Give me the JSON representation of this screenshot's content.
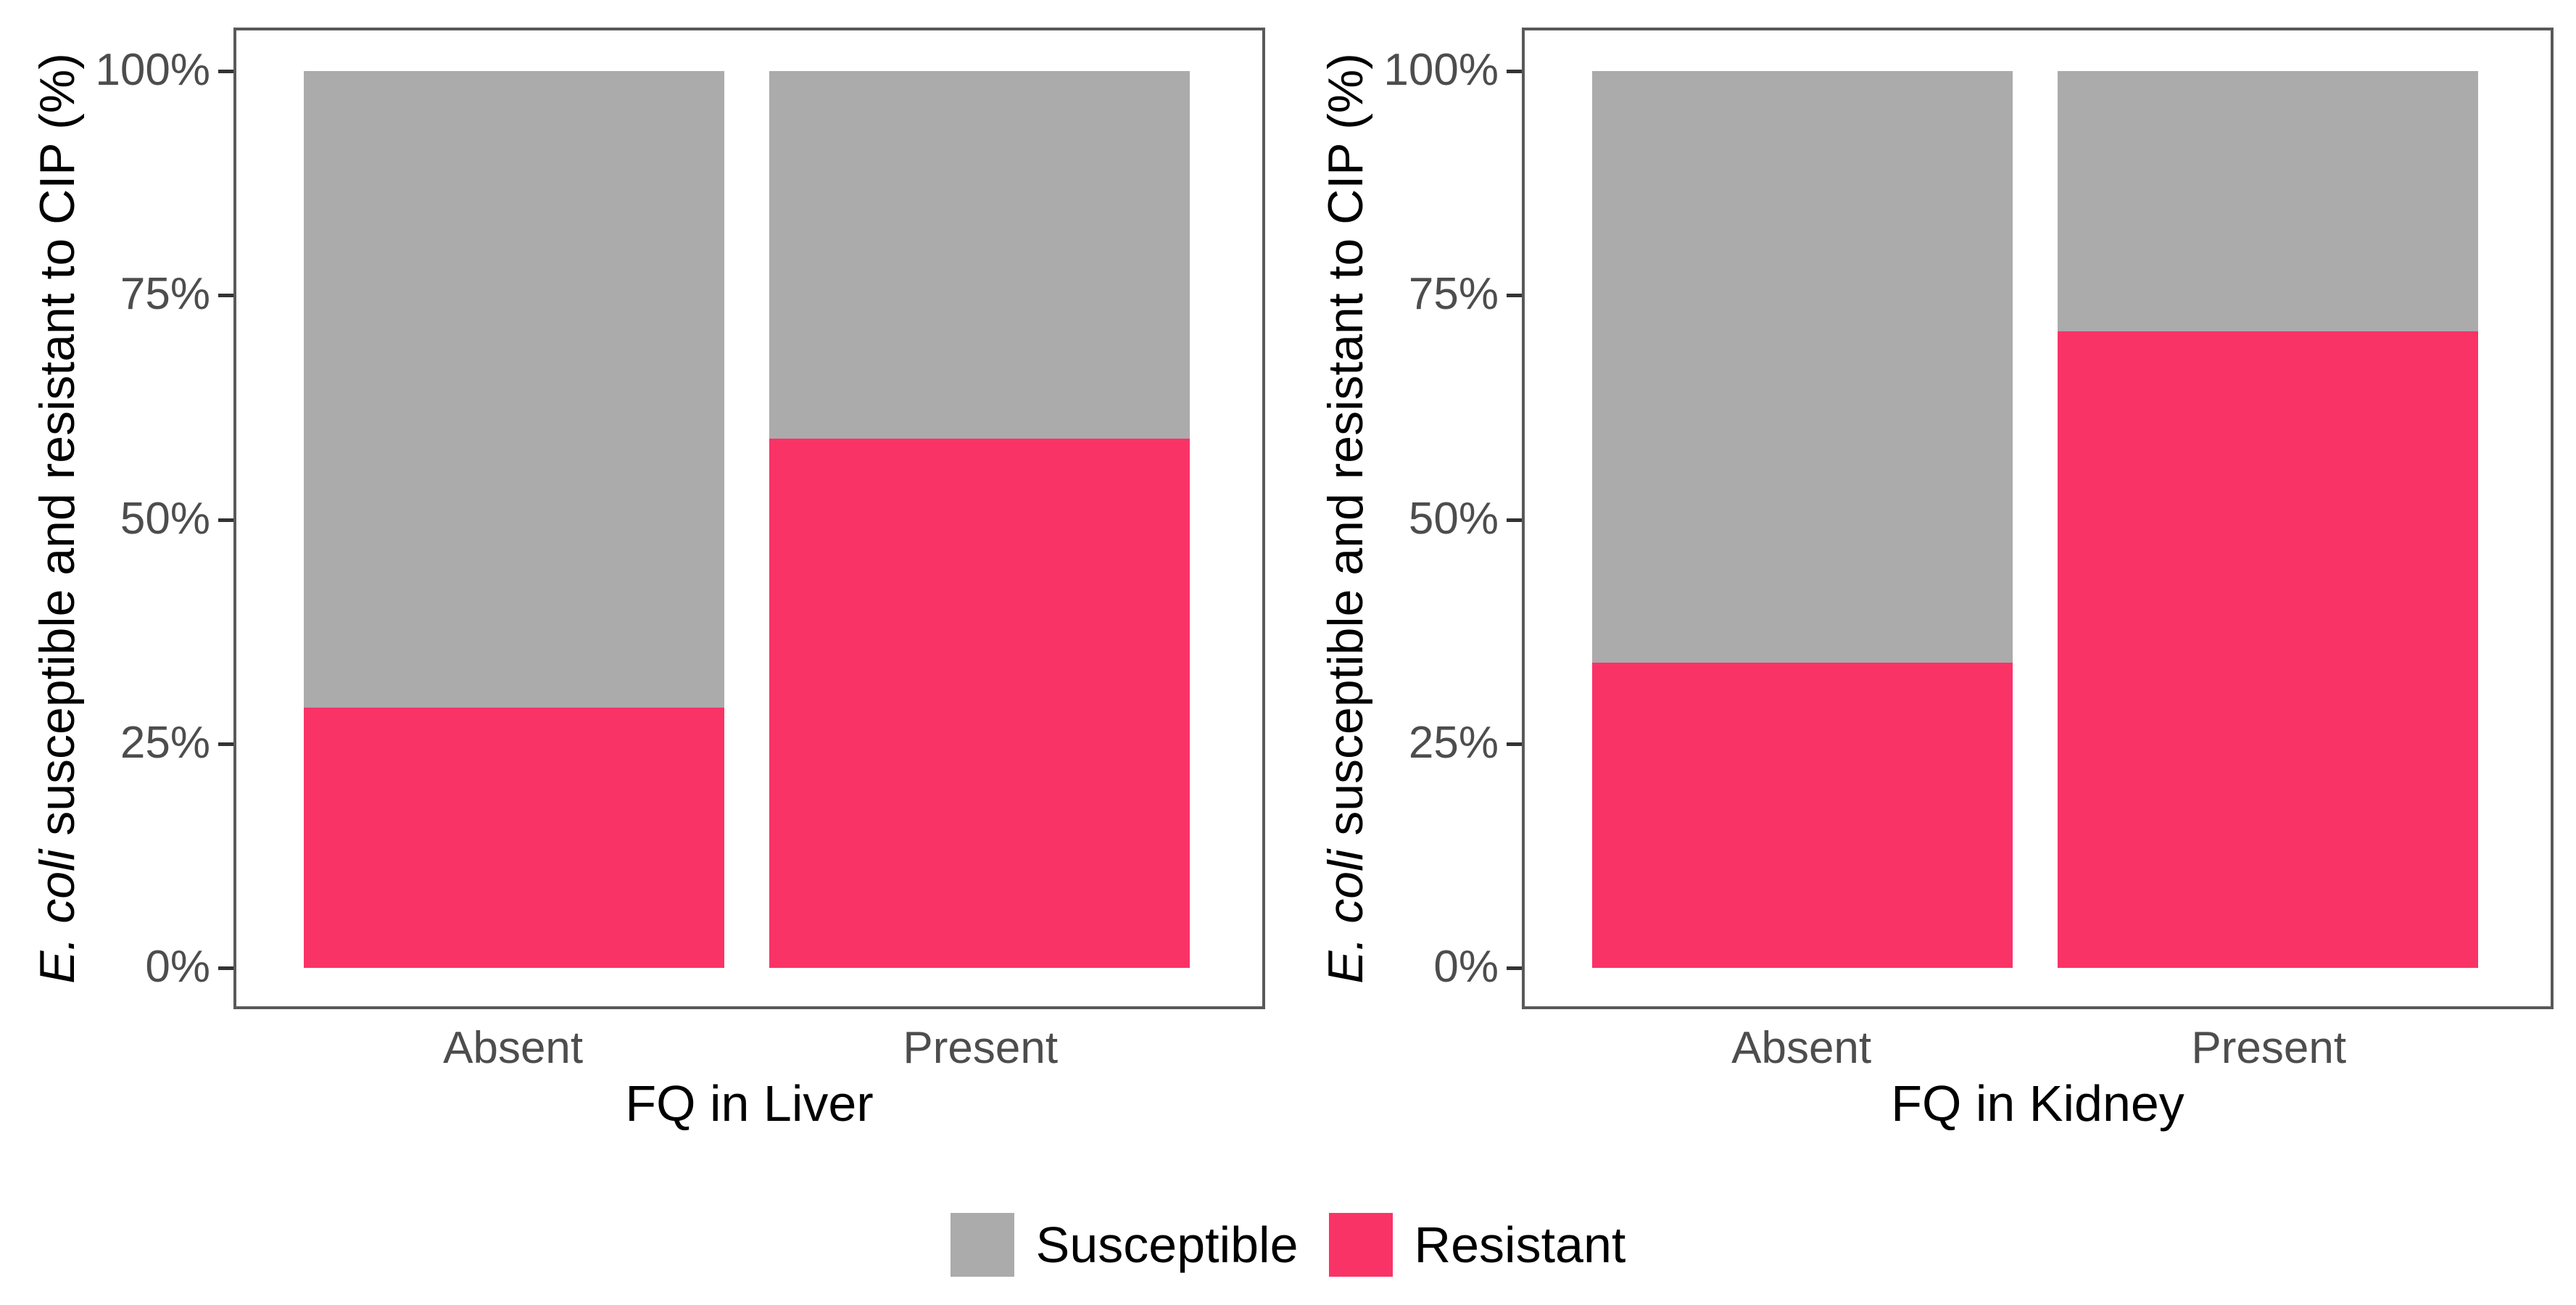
{
  "figure": {
    "background": "#FFFFFF"
  },
  "colors": {
    "susceptible": "#ABABAB",
    "resistant": "#FA3367",
    "panel_border": "#595959",
    "tick": "#333333",
    "tick_label": "#4D4D4D",
    "axis_title": "#000000"
  },
  "legend": {
    "position": "bottom-center",
    "items": [
      {
        "label": "Susceptible",
        "color": "#ABABAB"
      },
      {
        "label": "Resistant",
        "color": "#FA3367"
      }
    ]
  },
  "chart_data": [
    {
      "type": "bar",
      "stacked": true,
      "percent": true,
      "title": "",
      "xlabel": "FQ in Liver",
      "ylabel_italic": "E. coli",
      "ylabel_rest": " susceptible and resistant to CIP (%)",
      "categories": [
        "Absent",
        "Present"
      ],
      "series": [
        {
          "name": "Resistant",
          "color": "#FA3367",
          "values": [
            29,
            59
          ]
        },
        {
          "name": "Susceptible",
          "color": "#ABABAB",
          "values": [
            71,
            41
          ]
        }
      ],
      "yticks": [
        "0%",
        "25%",
        "50%",
        "75%",
        "100%"
      ],
      "ylim": [
        0,
        100
      ],
      "grid": false,
      "legend_position": "bottom"
    },
    {
      "type": "bar",
      "stacked": true,
      "percent": true,
      "title": "",
      "xlabel": "FQ in Kidney",
      "ylabel_italic": "E. coli",
      "ylabel_rest": " susceptible and resistant to CIP (%)",
      "categories": [
        "Absent",
        "Present"
      ],
      "series": [
        {
          "name": "Resistant",
          "color": "#FA3367",
          "values": [
            34,
            71
          ]
        },
        {
          "name": "Susceptible",
          "color": "#ABABAB",
          "values": [
            66,
            29
          ]
        }
      ],
      "yticks": [
        "0%",
        "25%",
        "50%",
        "75%",
        "100%"
      ],
      "ylim": [
        0,
        100
      ],
      "grid": false,
      "legend_position": "bottom"
    }
  ]
}
